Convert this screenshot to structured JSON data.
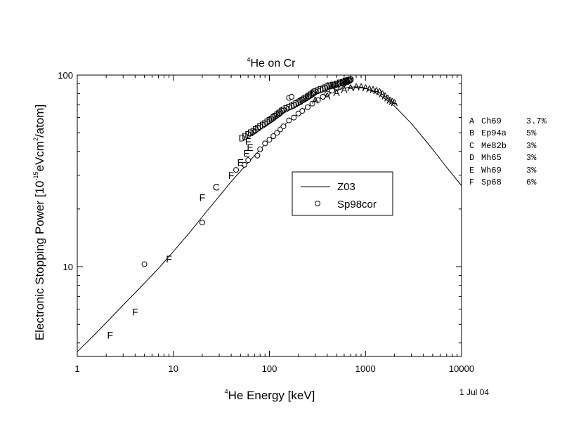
{
  "chart_data": {
    "type": "scatter",
    "title": {
      "sup": "4",
      "text": "He on Cr"
    },
    "xlabel": {
      "sup": "4",
      "text": "He Energy [keV]"
    },
    "ylabel": {
      "pre": "Electronic Stopping Power [10",
      "sup1": "-15",
      "mid": "eVcm",
      "sup2": "2",
      "post": "/atom]"
    },
    "x_scale": "log",
    "y_scale": "log",
    "xlim": [
      1,
      10000
    ],
    "ylim": [
      3.4,
      100
    ],
    "x_ticks": [
      {
        "value": 1,
        "label": "1"
      },
      {
        "value": 10,
        "label": "10"
      },
      {
        "value": 100,
        "label": "100"
      },
      {
        "value": 1000,
        "label": "1000"
      },
      {
        "value": 10000,
        "label": "10000"
      }
    ],
    "y_ticks": [
      {
        "value": 10,
        "label": "10"
      },
      {
        "value": 100,
        "label": "100"
      }
    ],
    "grid": false,
    "legend": {
      "placement": "center-right",
      "entries": [
        {
          "label": "Z03",
          "marker": "line"
        },
        {
          "label": "Sp98cor",
          "marker": "circle"
        }
      ]
    },
    "curve": {
      "name": "Z03",
      "x": [
        1,
        1.5,
        2,
        3,
        4,
        5,
        7,
        10,
        15,
        20,
        30,
        40,
        50,
        70,
        100,
        150,
        200,
        300,
        400,
        500,
        600,
        700,
        800,
        900,
        1000,
        1200,
        1500,
        2000,
        3000,
        4000,
        5000,
        7000,
        10000
      ],
      "y": [
        3.6,
        4.4,
        5.1,
        6.3,
        7.3,
        8.2,
        9.8,
        12,
        15.2,
        18.2,
        23.3,
        27.8,
        31.5,
        38,
        46,
        56,
        63,
        73,
        79,
        83,
        85.5,
        86.5,
        86.8,
        86.5,
        85.5,
        82,
        77,
        69,
        56,
        47,
        41,
        33,
        26.5
      ]
    },
    "series": [
      {
        "name": "Sp98cor",
        "marker": "circle",
        "x": [
          5,
          20,
          45,
          55,
          60,
          75,
          80,
          90,
          100,
          110,
          120,
          130,
          140,
          160,
          180,
          200,
          220,
          250,
          280,
          320,
          360,
          400,
          450,
          500,
          550,
          600,
          650,
          700,
          160,
          170
        ],
        "y": [
          10.3,
          17,
          32,
          34,
          36,
          38,
          41,
          44,
          46,
          48,
          50,
          52,
          54,
          58,
          60,
          63,
          65,
          68,
          71,
          74,
          77,
          80,
          83,
          86,
          88,
          90,
          92,
          94,
          76,
          77
        ]
      },
      {
        "name": "A",
        "marker": "letter",
        "x": [
          300,
          400,
          500,
          600,
          700,
          800,
          900,
          1000,
          1100,
          1200,
          1300,
          1400,
          1500,
          1600,
          1700,
          1800,
          1900,
          2000
        ],
        "y": [
          74,
          78,
          81,
          84,
          86,
          87,
          87,
          86,
          85,
          84,
          83,
          82,
          80,
          78,
          76,
          74,
          73,
          72
        ]
      },
      {
        "name": "C",
        "marker": "letter",
        "x": [
          28
        ],
        "y": [
          26
        ]
      },
      {
        "name": "D",
        "marker": "letter",
        "x": [
          52,
          56,
          60,
          64,
          68,
          72,
          76,
          80,
          85,
          90,
          95,
          100,
          105,
          110,
          115,
          120,
          125,
          130,
          135,
          140,
          150,
          160,
          170,
          180,
          190,
          200,
          210,
          220,
          230,
          240,
          250,
          260,
          270,
          280,
          290,
          300,
          320,
          340,
          360,
          380,
          400,
          420,
          440,
          460,
          480,
          500,
          520,
          540,
          560,
          580,
          600,
          620,
          640,
          660,
          680,
          700
        ],
        "y": [
          47,
          48,
          49,
          50,
          51,
          52,
          53,
          54,
          55,
          56,
          57,
          58,
          59,
          60,
          61,
          62,
          63,
          64,
          65,
          66,
          67,
          68,
          69,
          70,
          71,
          72,
          73,
          74,
          75,
          76,
          77,
          78,
          79,
          80,
          81,
          82,
          83,
          84,
          85,
          86,
          87,
          88,
          88,
          89,
          89,
          90,
          90,
          91,
          91,
          92,
          92,
          93,
          93,
          94,
          94,
          95
        ]
      },
      {
        "name": "E",
        "marker": "letter",
        "x": [
          50,
          58,
          63
        ],
        "y": [
          35,
          39,
          42
        ]
      },
      {
        "name": "F",
        "marker": "letter",
        "x": [
          2.2,
          4,
          9,
          20,
          40,
          60,
          70
        ],
        "y": [
          4.4,
          5.8,
          11,
          23,
          30,
          45,
          50
        ]
      }
    ],
    "references": [
      {
        "letter": "A",
        "name": "Ch69",
        "err": "3.7%"
      },
      {
        "letter": "B",
        "name": "Ep94a",
        "err": "5%"
      },
      {
        "letter": "C",
        "name": "Me82b",
        "err": "3%"
      },
      {
        "letter": "D",
        "name": "Mh65",
        "err": "3%"
      },
      {
        "letter": "E",
        "name": "Wh69",
        "err": "3%"
      },
      {
        "letter": "F",
        "name": "Sp68",
        "err": "6%"
      }
    ],
    "date": "1 Jul 04"
  }
}
